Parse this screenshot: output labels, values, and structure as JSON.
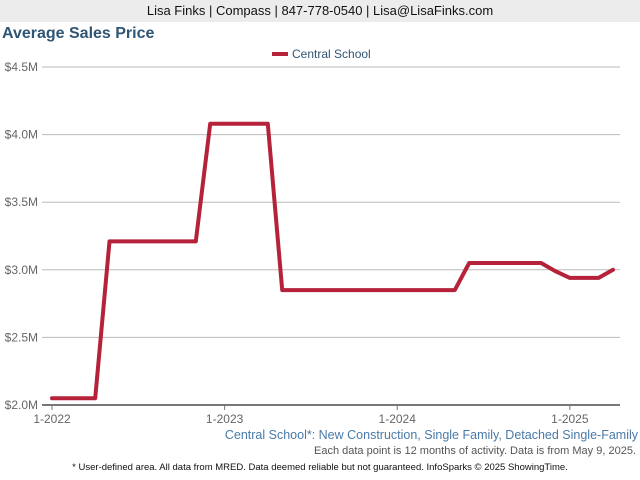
{
  "header": {
    "contact": "Lisa Finks | Compass | 847-778-0540 | Lisa@LisaFinks.com"
  },
  "footer": {
    "caption": "Central School*: New Construction, Single Family, Detached Single-Family",
    "note": "Each data point is 12 months of activity. Data is from May 9, 2025.",
    "disclaimer": "* User-defined area. All data from MRED. Data deemed reliable but not guaranteed. InfoSparks © 2025 ShowingTime."
  },
  "colors": {
    "series": "#b5223a",
    "title": "#2f5574",
    "grid": "#bbbbbb"
  },
  "chart_data": {
    "type": "line",
    "title": "Average Sales Price",
    "xlabel": "",
    "ylabel": "",
    "ylim": [
      2000000,
      4500000
    ],
    "yticks": [
      {
        "value": 4500000,
        "label": "$4.5M"
      },
      {
        "value": 4000000,
        "label": "$4.0M"
      },
      {
        "value": 3500000,
        "label": "$3.5M"
      },
      {
        "value": 3000000,
        "label": "$3.0M"
      },
      {
        "value": 2500000,
        "label": "$2.5M"
      },
      {
        "value": 2000000,
        "label": "$2.0M"
      }
    ],
    "xticks": [
      {
        "value": "2022-01",
        "label": "1-2022"
      },
      {
        "value": "2023-01",
        "label": "1-2023"
      },
      {
        "value": "2024-01",
        "label": "1-2024"
      },
      {
        "value": "2025-01",
        "label": "1-2025"
      }
    ],
    "xlim": [
      "2022-01",
      "2025-04"
    ],
    "legend": "top-center",
    "grid": true,
    "series": [
      {
        "name": "Central School",
        "color": "#b5223a",
        "x": [
          "2022-01",
          "2022-02",
          "2022-03",
          "2022-04",
          "2022-05",
          "2022-06",
          "2022-07",
          "2022-08",
          "2022-09",
          "2022-10",
          "2022-11",
          "2022-12",
          "2023-01",
          "2023-02",
          "2023-03",
          "2023-04",
          "2023-05",
          "2023-06",
          "2023-07",
          "2023-08",
          "2023-09",
          "2023-10",
          "2023-11",
          "2023-12",
          "2024-01",
          "2024-02",
          "2024-03",
          "2024-04",
          "2024-05",
          "2024-06",
          "2024-07",
          "2024-08",
          "2024-09",
          "2024-10",
          "2024-11",
          "2024-12",
          "2025-01",
          "2025-02",
          "2025-03",
          "2025-04"
        ],
        "values": [
          2050000,
          2050000,
          2050000,
          2050000,
          3210000,
          3210000,
          3210000,
          3210000,
          3210000,
          3210000,
          3210000,
          4080000,
          4080000,
          4080000,
          4080000,
          4080000,
          2850000,
          2850000,
          2850000,
          2850000,
          2850000,
          2850000,
          2850000,
          2850000,
          2850000,
          2850000,
          2850000,
          2850000,
          2850000,
          3050000,
          3050000,
          3050000,
          3050000,
          3050000,
          3050000,
          2990000,
          2940000,
          2940000,
          2940000,
          3000000
        ]
      }
    ]
  }
}
